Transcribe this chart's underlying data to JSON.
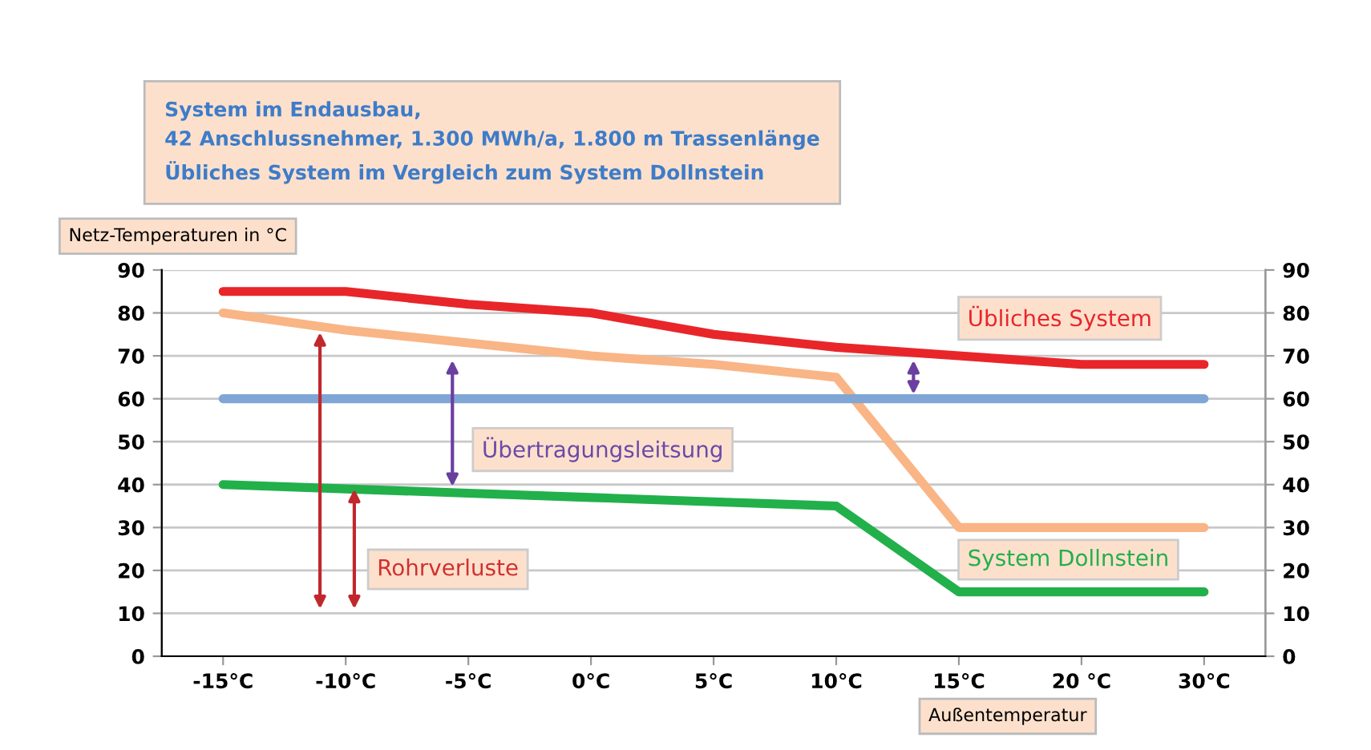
{
  "chart_data": {
    "type": "line",
    "title": "System im Endausbau,\n42 Anschlussnehmer, 1.300 MWh/a, 1.800 m Trassenlänge\nÜbliches System im Vergleich zum System Dollnstein",
    "ylabel": "Netz-Temperaturen in °C",
    "xlabel": "Außentemperatur",
    "categories": [
      "-15°C",
      "-10°C",
      "-5°C",
      "0°C",
      "5°C",
      "10°C",
      "15°C",
      "20 °C",
      "30°C"
    ],
    "series": [
      {
        "color": "#e8262a",
        "values": [
          85,
          85,
          82,
          80,
          75,
          72,
          70,
          68,
          68
        ]
      },
      {
        "color": "#f9b585",
        "values": [
          80,
          76,
          73,
          70,
          68,
          65,
          30,
          30,
          30
        ]
      },
      {
        "color": "#7fa6d4",
        "values": [
          60,
          60,
          60,
          60,
          60,
          60,
          60,
          60,
          60
        ]
      },
      {
        "color": "#22b04b",
        "values": [
          40,
          39,
          38,
          37,
          36,
          35,
          15,
          15,
          15
        ]
      }
    ],
    "ylim": [
      0,
      90
    ],
    "yticks": [
      0,
      10,
      20,
      30,
      40,
      50,
      60,
      70,
      80,
      90
    ],
    "y2lim": [
      0,
      90
    ],
    "y2ticks": [
      0,
      10,
      20,
      30,
      40,
      50,
      60,
      70,
      80,
      90
    ],
    "grid": "y",
    "marker": "none",
    "line_style": "solid",
    "annotations": [
      "Übliches System",
      "Übertragungsleitsung",
      "Rohrverluste",
      "System Dollnstein"
    ]
  }
}
